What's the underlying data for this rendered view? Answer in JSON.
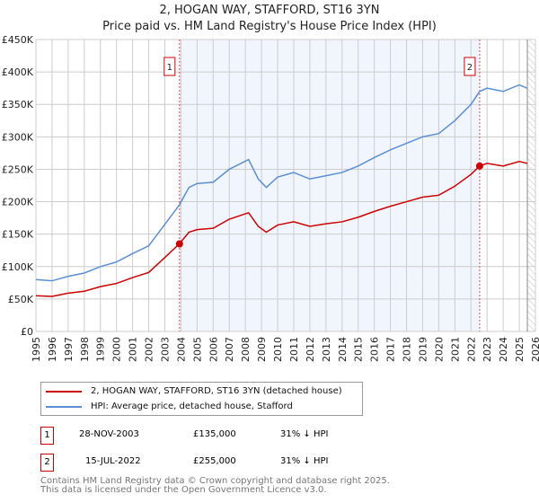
{
  "title": "2, HOGAN WAY, STAFFORD, ST16 3YN",
  "subtitle": "Price paid vs. HM Land Registry's House Price Index (HPI)",
  "chart_data": {
    "type": "line",
    "title": "2, HOGAN WAY, STAFFORD, ST16 3YN",
    "ylim": [
      0,
      450000
    ],
    "xlim": [
      1995,
      2026
    ],
    "yticks": [
      "£0",
      "£50K",
      "£100K",
      "£150K",
      "£200K",
      "£250K",
      "£300K",
      "£350K",
      "£400K",
      "£450K"
    ],
    "xticks": [
      "1995",
      "1996",
      "1997",
      "1998",
      "1999",
      "2000",
      "2001",
      "2002",
      "2003",
      "2004",
      "2005",
      "2006",
      "2007",
      "2008",
      "2009",
      "2010",
      "2011",
      "2012",
      "2013",
      "2014",
      "2015",
      "2016",
      "2017",
      "2018",
      "2019",
      "2020",
      "2021",
      "2022",
      "2023",
      "2024",
      "2025",
      "2026"
    ],
    "x": [
      1995,
      1996,
      1997,
      1998,
      1999,
      2000,
      2001,
      2002,
      2003,
      2003.9,
      2004.5,
      2005,
      2006,
      2007,
      2008.2,
      2008.8,
      2009.3,
      2010,
      2011,
      2012,
      2013,
      2014,
      2015,
      2016,
      2017,
      2018,
      2019,
      2020,
      2021,
      2022,
      2022.54,
      2023,
      2024,
      2025,
      2025.5
    ],
    "series": [
      {
        "name": "2, HOGAN WAY, STAFFORD, ST16 3YN (detached house)",
        "color": "#cc0000",
        "values": [
          55000,
          54000,
          59000,
          62000,
          69000,
          74000,
          83000,
          91000,
          114000,
          135000,
          153000,
          157000,
          159000,
          173000,
          183000,
          162000,
          153000,
          164000,
          169000,
          162000,
          166000,
          169000,
          176000,
          185000,
          193000,
          200000,
          207000,
          210000,
          224000,
          242000,
          255000,
          259000,
          255000,
          262000,
          259000
        ]
      },
      {
        "name": "HPI: Average price, detached house, Stafford",
        "color": "#5b8fd4",
        "values": [
          80000,
          78000,
          85000,
          90000,
          100000,
          107000,
          120000,
          132000,
          165000,
          195000,
          222000,
          228000,
          230000,
          250000,
          265000,
          235000,
          222000,
          238000,
          245000,
          235000,
          240000,
          245000,
          255000,
          268000,
          280000,
          290000,
          300000,
          305000,
          325000,
          350000,
          370000,
          375000,
          370000,
          380000,
          375000
        ]
      }
    ],
    "sales": [
      {
        "id": "1",
        "x": 2003.91,
        "value": 135000
      },
      {
        "id": "2",
        "x": 2022.54,
        "value": 255000
      }
    ],
    "shaded_range": [
      2003.91,
      2022.54
    ],
    "forecast_from": 2025.5,
    "grid": true
  },
  "legend": [
    {
      "label": "2, HOGAN WAY, STAFFORD, ST16 3YN (detached house)",
      "color": "#cc0000"
    },
    {
      "label": "HPI: Average price, detached house, Stafford",
      "color": "#5b8fd4"
    }
  ],
  "sales_table": [
    {
      "id": "1",
      "date": "28-NOV-2003",
      "price": "£135,000",
      "delta": "31% ↓ HPI"
    },
    {
      "id": "2",
      "date": "15-JUL-2022",
      "price": "£255,000",
      "delta": "31% ↓ HPI"
    }
  ],
  "footer": [
    "Contains HM Land Registry data © Crown copyright and database right 2025.",
    "This data is licensed under the Open Government Licence v3.0."
  ]
}
